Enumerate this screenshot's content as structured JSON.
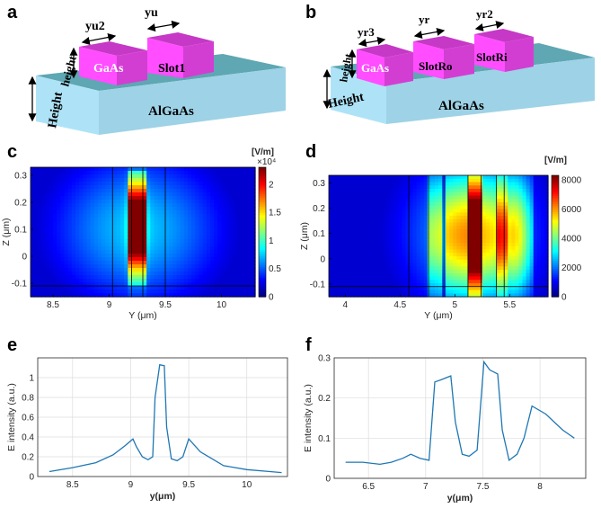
{
  "panels": {
    "a": {
      "letter": "a",
      "labels": {
        "yu2": "yu2",
        "yu": "yu",
        "height_small": "height",
        "height_big": "Height",
        "gaas": "GaAs",
        "slot": "Slot1",
        "substrate": "AlGaAs"
      }
    },
    "b": {
      "letter": "b",
      "labels": {
        "yr3": "yr3",
        "yr": "yr",
        "yr2": "yr2",
        "height_small": "height",
        "height_big": "Height",
        "gaas": "GaAs",
        "slot_outer": "SlotRo",
        "slot_inner": "SlotRi",
        "substrate": "AlGaAs"
      }
    }
  },
  "colors": {
    "waveguide_top": "#c638c6",
    "waveguide_front": "#ff4dff",
    "waveguide_side": "#d23ed2",
    "substrate_top": "#5ea7b3",
    "substrate_front": "#aee3f7",
    "substrate_side": "#9ed2e6",
    "line": "#1f77b4"
  },
  "chart_data": [
    {
      "id": "c",
      "letter": "c",
      "type": "heatmap",
      "xlabel": "Y (μm)",
      "ylabel": "Z (μm)",
      "xlim": [
        8.3,
        10.3
      ],
      "ylim": [
        -0.15,
        0.33
      ],
      "xticks": [
        8.5,
        9,
        9.5,
        10
      ],
      "xtick_labels": [
        "8.5",
        "9",
        "9.5",
        "10"
      ],
      "yticks": [
        -0.1,
        0,
        0.1,
        0.2,
        0.3
      ],
      "ytick_labels": [
        "-0.1",
        "0",
        "0.1",
        "0.2",
        "0.3"
      ],
      "colorbar": {
        "unit": "[V/m]",
        "multiplier": "×10⁴",
        "min": 0,
        "max": 23000,
        "ticks": [
          0,
          5000,
          10000,
          15000,
          20000
        ],
        "tick_labels": [
          "0",
          "0.5",
          "1",
          "1.5",
          "2"
        ]
      },
      "outlines_y": [
        9.03,
        9.2,
        9.3,
        9.5
      ],
      "peak": 23000
    },
    {
      "id": "d",
      "letter": "d",
      "type": "heatmap",
      "xlabel": "Y (μm)",
      "ylabel": "Z (μm)",
      "xlim": [
        3.85,
        5.85
      ],
      "ylim": [
        -0.15,
        0.33
      ],
      "xticks": [
        4,
        4.5,
        5,
        5.5
      ],
      "xtick_labels": [
        "4",
        "4.5",
        "5",
        "5.5"
      ],
      "yticks": [
        -0.1,
        0,
        0.1,
        0.2,
        0.3
      ],
      "ytick_labels": [
        "-0.1",
        "0",
        "0.1",
        "0.2",
        "0.3"
      ],
      "colorbar": {
        "unit": "[V/m]",
        "multiplier": "",
        "min": 0,
        "max": 8300,
        "ticks": [
          0,
          2000,
          4000,
          6000,
          8000
        ],
        "tick_labels": [
          "0",
          "2000",
          "4000",
          "6000",
          "8000"
        ]
      },
      "outlines_y": [
        4.58,
        4.76,
        4.9,
        5.12,
        5.24,
        5.38,
        5.45
      ],
      "peak": 8300
    },
    {
      "id": "e",
      "letter": "e",
      "type": "line",
      "xlabel": "y(μm)",
      "ylabel": "E intensity (a.u.)",
      "xlim": [
        8.2,
        10.35
      ],
      "ylim": [
        0,
        1.2
      ],
      "xticks": [
        8.5,
        9,
        9.5,
        10
      ],
      "xtick_labels": [
        "8.5",
        "9",
        "9.5",
        "10"
      ],
      "yticks": [
        0,
        0.2,
        0.4,
        0.6,
        0.8,
        1
      ],
      "ytick_labels": [
        "0",
        "0.2",
        "0.4",
        "0.6",
        "0.8",
        "1"
      ],
      "x": [
        8.3,
        8.5,
        8.7,
        8.85,
        8.95,
        9.02,
        9.05,
        9.1,
        9.15,
        9.19,
        9.21,
        9.25,
        9.29,
        9.31,
        9.35,
        9.4,
        9.45,
        9.5,
        9.6,
        9.8,
        10.0,
        10.2,
        10.3
      ],
      "y": [
        0.05,
        0.09,
        0.14,
        0.22,
        0.31,
        0.38,
        0.3,
        0.2,
        0.17,
        0.2,
        0.8,
        1.13,
        1.12,
        0.5,
        0.18,
        0.16,
        0.2,
        0.38,
        0.25,
        0.11,
        0.07,
        0.05,
        0.04
      ]
    },
    {
      "id": "f",
      "letter": "f",
      "type": "line",
      "xlabel": "y(μm)",
      "ylabel": "E intensity (a.u.)",
      "xlim": [
        6.2,
        8.4
      ],
      "ylim": [
        0,
        0.3
      ],
      "xticks": [
        6.5,
        7,
        7.5,
        8
      ],
      "xtick_labels": [
        "6.5",
        "7",
        "7.5",
        "8"
      ],
      "yticks": [
        0,
        0.1,
        0.2,
        0.3
      ],
      "ytick_labels": [
        "0",
        "0.1",
        "0.2",
        "0.3"
      ],
      "x": [
        6.3,
        6.45,
        6.6,
        6.7,
        6.8,
        6.87,
        6.95,
        7.03,
        7.08,
        7.13,
        7.22,
        7.26,
        7.32,
        7.38,
        7.45,
        7.51,
        7.56,
        7.63,
        7.67,
        7.73,
        7.8,
        7.86,
        7.93,
        8.05,
        8.2,
        8.3
      ],
      "y": [
        0.04,
        0.04,
        0.035,
        0.04,
        0.05,
        0.06,
        0.05,
        0.045,
        0.24,
        0.245,
        0.255,
        0.14,
        0.06,
        0.055,
        0.07,
        0.29,
        0.27,
        0.26,
        0.12,
        0.045,
        0.06,
        0.1,
        0.18,
        0.16,
        0.12,
        0.1
      ]
    }
  ]
}
